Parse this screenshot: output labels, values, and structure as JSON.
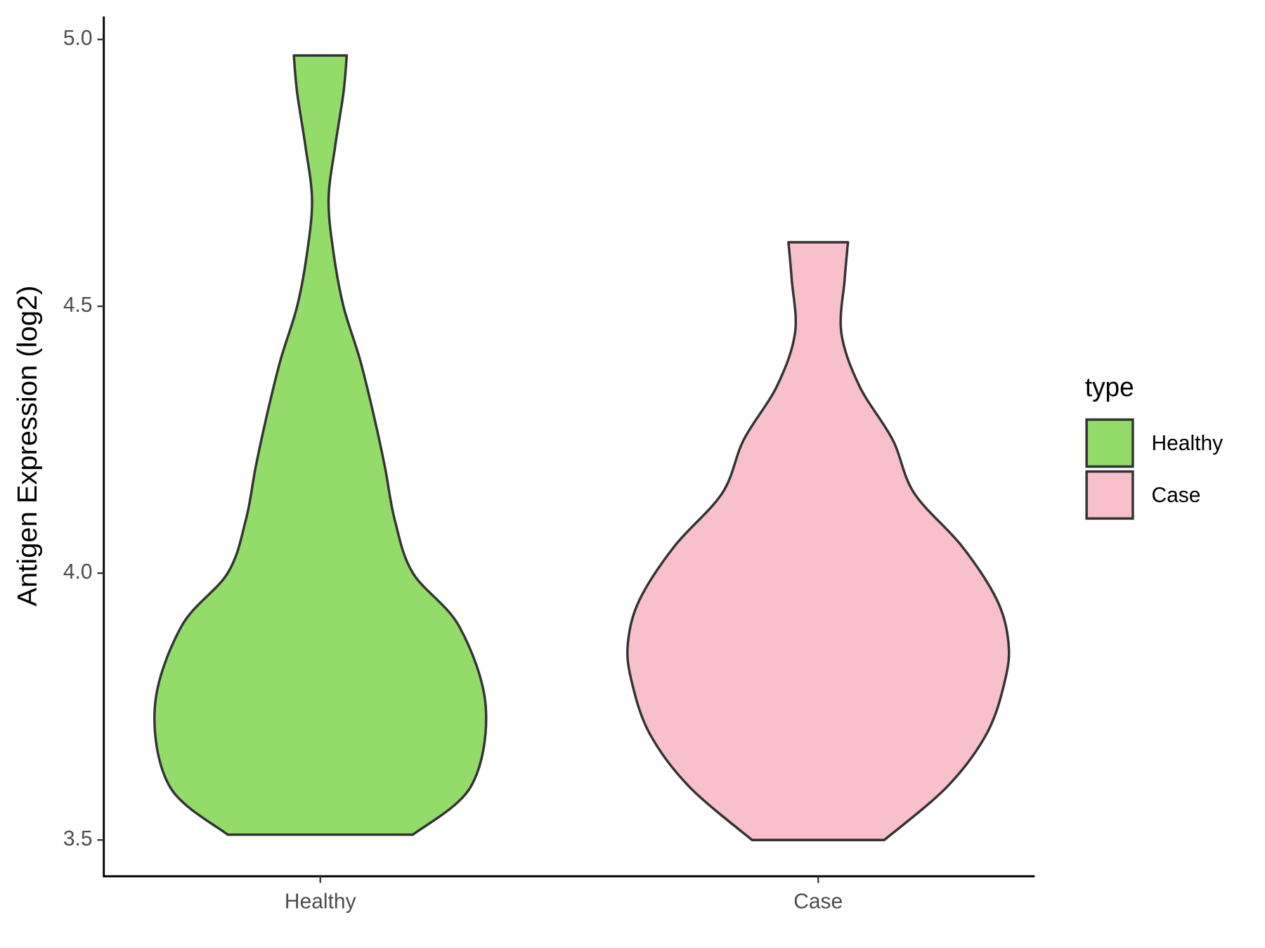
{
  "chart_data": {
    "type": "violin",
    "y_label": "Antigen Expression (log2)",
    "categories": [
      "Healthy",
      "Case"
    ],
    "ylim": [
      3.432,
      5.043
    ],
    "yticks": [
      {
        "value": 3.5,
        "label": "3.5"
      },
      {
        "value": 4.0,
        "label": "4.0"
      },
      {
        "value": 4.5,
        "label": "4.5"
      },
      {
        "value": 5.0,
        "label": "5.0"
      }
    ],
    "legend_title": "type",
    "legend_position": "right",
    "series": [
      {
        "name": "Healthy",
        "color": "#93dc6a",
        "y": [
          3.51,
          3.6,
          3.75,
          3.9,
          4.0,
          4.1,
          4.2,
          4.3,
          4.4,
          4.5,
          4.6,
          4.7,
          4.8,
          4.9,
          4.97
        ],
        "density": [
          0.56,
          0.91,
          1,
          0.84,
          0.56,
          0.45,
          0.39,
          0.32,
          0.24,
          0.14,
          0.08,
          0.05,
          0.09,
          0.14,
          0.16
        ]
      },
      {
        "name": "Case",
        "color": "#f7c0cb",
        "y": [
          3.5,
          3.6,
          3.7,
          3.8,
          3.87,
          3.95,
          4.05,
          4.15,
          4.25,
          4.35,
          4.45,
          4.55,
          4.62
        ],
        "density": [
          0.4,
          0.78,
          1.02,
          1.13,
          1.15,
          1.08,
          0.87,
          0.58,
          0.45,
          0.25,
          0.14,
          0.16,
          0.18
        ]
      }
    ]
  }
}
